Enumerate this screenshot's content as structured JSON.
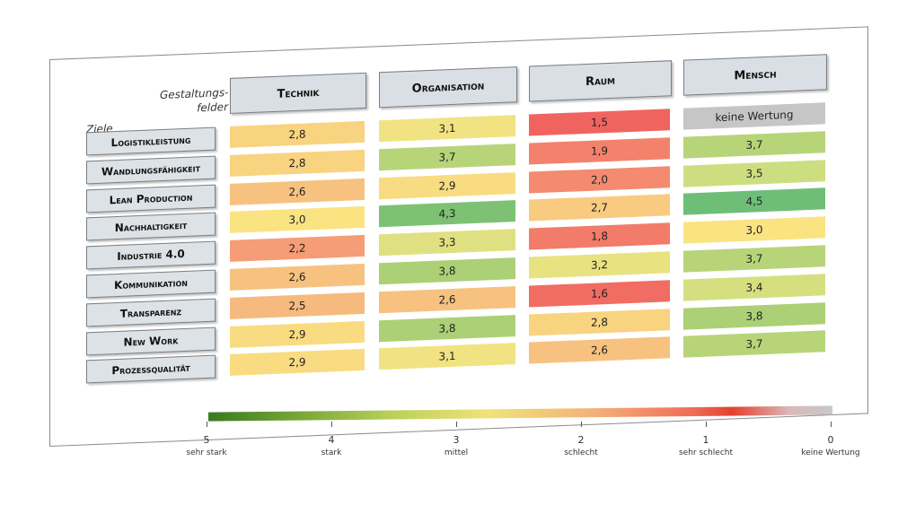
{
  "chart_data": {
    "type": "heatmap",
    "corner_labels": {
      "columns": "Gestaltungs-\nfelder",
      "rows": "Ziele"
    },
    "columns": [
      "Technik",
      "Organisation",
      "Raum",
      "Mensch"
    ],
    "rows": [
      "Logistikleistung",
      "Wandlungsfähigkeit",
      "Lean Production",
      "Nachhaltigkeit",
      "Industrie 4.0",
      "Kommunikation",
      "Transparenz",
      "New Work",
      "Prozessqualität"
    ],
    "values": [
      [
        "2,8",
        "3,1",
        "1,5",
        "keine Wertung"
      ],
      [
        "2,8",
        "3,7",
        "1,9",
        "3,7"
      ],
      [
        "2,6",
        "2,9",
        "2,0",
        "3,5"
      ],
      [
        "3,0",
        "4,3",
        "2,7",
        "4,5"
      ],
      [
        "2,2",
        "3,3",
        "1,8",
        "3,0"
      ],
      [
        "2,6",
        "3,8",
        "3,2",
        "3,7"
      ],
      [
        "2,5",
        "2,6",
        "1,6",
        "3,4"
      ],
      [
        "2,9",
        "3,8",
        "2,8",
        "3,8"
      ],
      [
        "2,9",
        "3,1",
        "2,6",
        "3,7"
      ]
    ],
    "scale": {
      "ticks": [
        {
          "value": "5",
          "label": "sehr stark"
        },
        {
          "value": "4",
          "label": "stark"
        },
        {
          "value": "3",
          "label": "mittel"
        },
        {
          "value": "2",
          "label": "schlecht"
        },
        {
          "value": "1",
          "label": "sehr schlecht"
        },
        {
          "value": "0",
          "label": "keine Wertung"
        }
      ]
    }
  }
}
